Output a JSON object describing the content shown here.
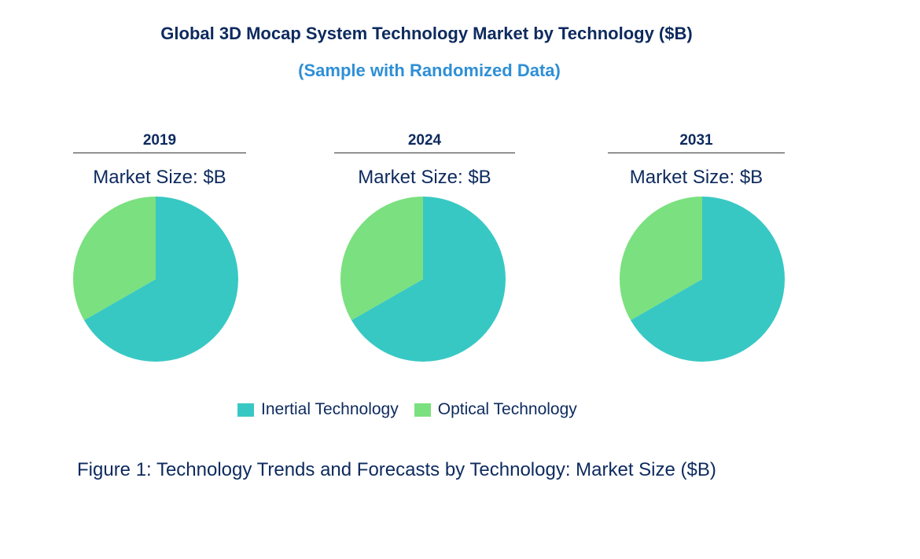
{
  "chart_data": {
    "type": "pie",
    "title": "Global 3D Mocap System Technology Market by Technology ($B)",
    "subtitle": "(Sample with Randomized Data)",
    "categories": [
      "Inertial Technology",
      "Optical Technology"
    ],
    "colors": {
      "Inertial Technology": "#38c8c4",
      "Optical Technology": "#7be07f"
    },
    "legend_position": "bottom",
    "pies": [
      {
        "year": "2019",
        "label": "Market Size: $B",
        "values": [
          66.7,
          33.3
        ]
      },
      {
        "year": "2024",
        "label": "Market Size: $B",
        "values": [
          66.7,
          33.3
        ]
      },
      {
        "year": "2031",
        "label": "Market Size: $B",
        "values": [
          66.7,
          33.3
        ]
      }
    ],
    "caption": "Figure 1: Technology Trends and Forecasts by Technology: Market Size ($B)"
  }
}
